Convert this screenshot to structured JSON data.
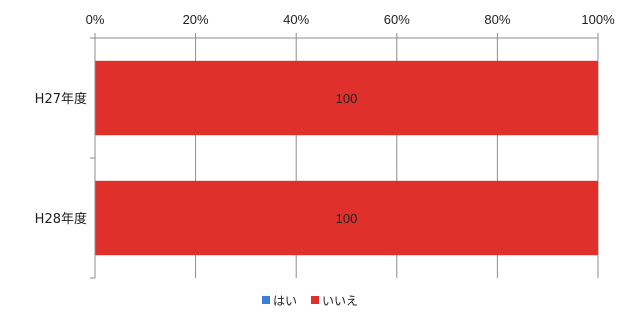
{
  "chart_data": {
    "type": "bar",
    "orientation": "horizontal",
    "stacked": "percent",
    "categories": [
      "H27年度",
      "H28年度"
    ],
    "series": [
      {
        "name": "はい",
        "values": [
          0,
          0
        ],
        "color": "#3a7fd5"
      },
      {
        "name": "いいえ",
        "values": [
          100,
          100
        ],
        "color": "#e0302b"
      }
    ],
    "data_labels": [
      "100",
      "100"
    ],
    "x_ticks": [
      "0%",
      "20%",
      "40%",
      "60%",
      "80%",
      "100%"
    ],
    "xlim": [
      0,
      100
    ],
    "x_axis_position": "top",
    "grid": true,
    "legend_position": "bottom"
  }
}
